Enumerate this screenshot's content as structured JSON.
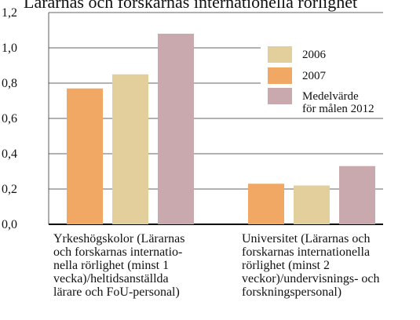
{
  "chart_data": {
    "type": "bar",
    "title": "Lärarnas och forskarnas internationella rörlighet",
    "categories": [
      "Yrkeshögskolor (Lärarnas\noch forskarnas internatio-\nnella rörlighet (minst 1\nvecka)/heltidsanställda\nlärare och FoU-personal)",
      "Universitet (Lärarnas och\nforskarnas internationella\nrörlighet (minst 2\nveckor)/undervisnings- och\nforskningspersonal)"
    ],
    "series": [
      {
        "name": "2007",
        "color": "#f2a865",
        "values": [
          0.77,
          0.23
        ]
      },
      {
        "name": "2006",
        "color": "#e3cf9c",
        "values": [
          0.85,
          0.22
        ]
      },
      {
        "name": "Medelvärde\nför målen 2012",
        "color": "#c9a9ae",
        "values": [
          1.08,
          0.33
        ]
      }
    ],
    "ylim": [
      0,
      1.2
    ],
    "yticks": [
      {
        "value": 0,
        "label": "0,0"
      },
      {
        "value": 0.2,
        "label": "0,2"
      },
      {
        "value": 0.4,
        "label": "0,4"
      },
      {
        "value": 0.6,
        "label": "0,6"
      },
      {
        "value": 0.8,
        "label": "0,8"
      },
      {
        "value": 1.0,
        "label": "1,0"
      },
      {
        "value": 1.2,
        "label": "1,2"
      }
    ],
    "grid": true
  }
}
